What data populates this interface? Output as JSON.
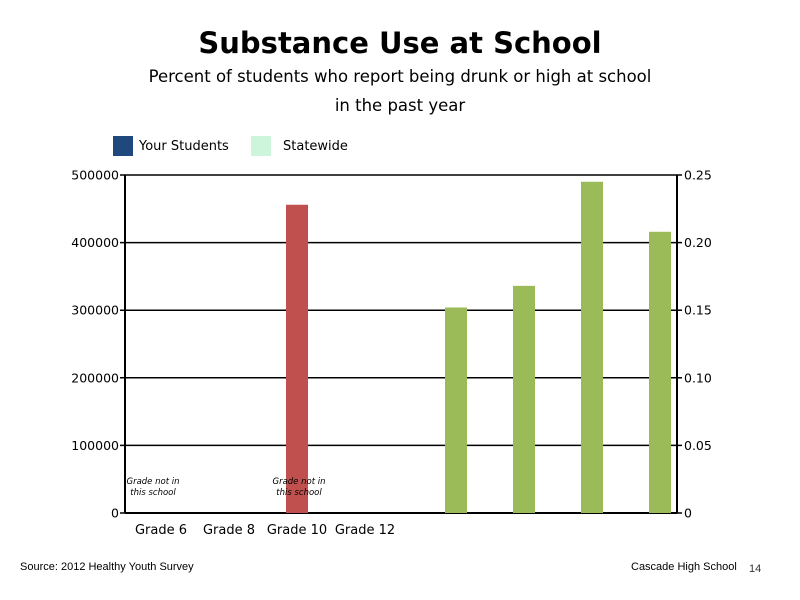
{
  "slide": {
    "title": "Substance Use at School",
    "subtitle_line1": "Percent of students who report being drunk or high at school",
    "subtitle_line2": "in the past year",
    "source": "Source: 2012 Healthy Youth Survey",
    "school": "Cascade High School",
    "page_number": "14"
  },
  "chart_data": {
    "type": "bar",
    "title": "Substance Use at School",
    "subtitle": "Percent of students who report being drunk or high at school in the past year",
    "categories": [
      "Grade 6",
      "Grade 8",
      "Grade 10",
      "Grade 12"
    ],
    "legend": [
      {
        "name": "Your Students",
        "color": "#1f497d"
      },
      {
        "name": "Statewide",
        "color": "#ccf5dc"
      }
    ],
    "legend_position": "top-left",
    "primary_axis": {
      "ylim": [
        0,
        500000
      ],
      "ticks": [
        "0",
        "100000",
        "200000",
        "300000",
        "400000",
        "500000"
      ]
    },
    "secondary_axis": {
      "ylim": [
        0,
        0.25
      ],
      "ticks": [
        "0",
        "0.05",
        "0.10",
        "0.15",
        "0.20",
        "0.25"
      ]
    },
    "primary_series": [
      {
        "color": "#c0504d",
        "values": [
          null,
          null,
          456000,
          null
        ]
      }
    ],
    "secondary_series": [
      {
        "color": "#9bbb59",
        "values": [
          0.152,
          0.168,
          0.245,
          0.208
        ]
      }
    ],
    "annotations": [
      {
        "category": "Grade 6",
        "lines": [
          "Grade not in",
          "this school"
        ]
      },
      {
        "category": "Grade 10",
        "lines": [
          "Grade not in",
          "this school"
        ]
      }
    ],
    "grid": true
  }
}
